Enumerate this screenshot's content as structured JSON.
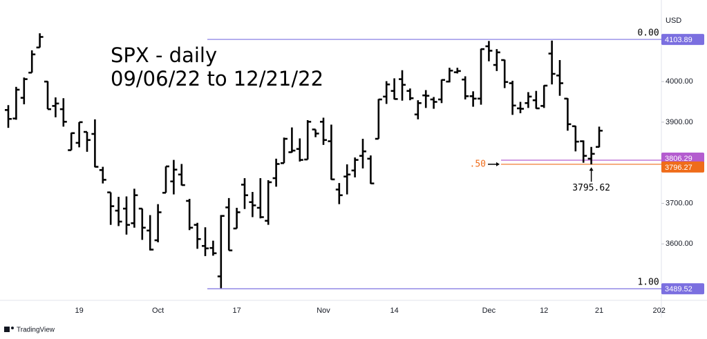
{
  "chart_data": {
    "type": "ohlc",
    "title_lines": [
      "SPX - daily",
      "09/06/22 to 12/21/22"
    ],
    "currency": "USD",
    "categories": [
      null,
      null,
      null,
      null,
      null,
      null,
      null,
      null,
      null,
      "19",
      null,
      null,
      null,
      null,
      null,
      null,
      null,
      null,
      null,
      "Oct",
      null,
      null,
      null,
      null,
      null,
      null,
      null,
      null,
      null,
      "17",
      null,
      null,
      null,
      null,
      null,
      null,
      null,
      null,
      null,
      null,
      "Nov",
      null,
      null,
      null,
      null,
      null,
      null,
      null,
      null,
      "14",
      null,
      null,
      null,
      null,
      null,
      null,
      null,
      null,
      null,
      null,
      null,
      "Dec",
      null,
      null,
      null,
      null,
      null,
      null,
      "12",
      null,
      null,
      null,
      null,
      null,
      null,
      "21"
    ],
    "overflow_category": "202",
    "open": [
      3930,
      3909,
      3960,
      4022,
      4084,
      4000,
      3940,
      3932,
      3831,
      3849,
      3876,
      3871,
      3782,
      3727,
      3682,
      3687,
      3651,
      3687,
      3633,
      3609,
      3726,
      3754,
      3771,
      3706,
      3647,
      3595,
      3590,
      3520,
      3690,
      3638,
      3746,
      3703,
      3689,
      3657,
      3762,
      3799,
      3826,
      3834,
      3808,
      3882,
      3901,
      3853,
      3734,
      3766,
      3781,
      3817,
      3810,
      3859,
      3963,
      3977,
      4006,
      3977,
      3919,
      3966,
      3956,
      3956,
      4000,
      4023,
      4005,
      3964,
      3958,
      4087,
      4041,
      4053,
      3996,
      3934,
      3947,
      3954,
      3940,
      4069,
      4015,
      3958,
      3890,
      3853,
      3810,
      3839
    ],
    "high": [
      3942,
      3987,
      4010,
      4077,
      4119,
      4001,
      3961,
      3959,
      3874,
      3900,
      3876,
      3907,
      3790,
      3727,
      3716,
      3717,
      3736,
      3687,
      3671,
      3698,
      3791,
      3807,
      3797,
      3711,
      3652,
      3641,
      3608,
      3671,
      3713,
      3689,
      3762,
      3728,
      3762,
      3757,
      3810,
      3862,
      3887,
      3860,
      3905,
      3882,
      3911,
      3894,
      3750,
      3796,
      3813,
      3859,
      3818,
      3957,
      4001,
      4008,
      4028,
      3983,
      3954,
      3979,
      3962,
      4005,
      4034,
      4034,
      4013,
      3976,
      4081,
      4100,
      4080,
      4054,
      4002,
      3950,
      3974,
      3977,
      3991,
      4101,
      4053,
      3959,
      3891,
      3855,
      3839,
      3889
    ],
    "low": [
      3886,
      3906,
      3944,
      4022,
      4084,
      3932,
      3912,
      3889,
      3831,
      3838,
      3827,
      3789,
      3749,
      3647,
      3644,
      3623,
      3640,
      3610,
      3584,
      3604,
      3726,
      3722,
      3744,
      3634,
      3588,
      3570,
      3571,
      3491,
      3584,
      3638,
      3686,
      3666,
      3663,
      3647,
      3741,
      3799,
      3825,
      3803,
      3808,
      3863,
      3844,
      3758,
      3698,
      3722,
      3764,
      3786,
      3748,
      3859,
      3945,
      3956,
      3953,
      3954,
      3907,
      3935,
      3933,
      3947,
      3998,
      4020,
      3956,
      3938,
      3943,
      4050,
      4026,
      3984,
      3918,
      3922,
      3935,
      3933,
      3935,
      3993,
      3965,
      3879,
      3828,
      3800,
      3796,
      3838
    ],
    "close": [
      3908,
      3980,
      4006,
      4067,
      4110,
      3932,
      3946,
      3901,
      3873,
      3900,
      3856,
      3790,
      3758,
      3693,
      3655,
      3647,
      3720,
      3640,
      3586,
      3678,
      3791,
      3783,
      3745,
      3640,
      3612,
      3589,
      3577,
      3669,
      3584,
      3678,
      3720,
      3695,
      3666,
      3752,
      3797,
      3859,
      3830,
      3807,
      3901,
      3872,
      3856,
      3759,
      3720,
      3771,
      3807,
      3828,
      3749,
      3956,
      3993,
      3957,
      3992,
      3959,
      3947,
      3965,
      3950,
      4004,
      4027,
      4026,
      3964,
      3958,
      4080,
      4076,
      4072,
      3999,
      3941,
      3933,
      3963,
      3934,
      3990,
      4019,
      3996,
      3895,
      3852,
      3817,
      3822,
      3879
    ],
    "color": "#000000",
    "ylim": [
      3461,
      4201
    ],
    "yticks": [
      {
        "value": 3600,
        "label": "3600.00"
      },
      {
        "value": 3700,
        "label": "3700.00"
      },
      {
        "value": 3900,
        "label": "3900.00"
      },
      {
        "value": 4000,
        "label": "4000.00"
      }
    ],
    "levels": [
      {
        "label": "0.00",
        "value": 4103.89,
        "color": "#7b6fe0"
      },
      {
        "value": 3806.29,
        "color": "#b45ccf"
      },
      {
        "label": ".50",
        "value": 3796.27,
        "color": "#ef6c1a"
      },
      {
        "label": "1.00",
        "value": 3489.52,
        "color": "#7b6fe0"
      }
    ],
    "low_annotation": 3795.62
  },
  "branding": "TradingView"
}
